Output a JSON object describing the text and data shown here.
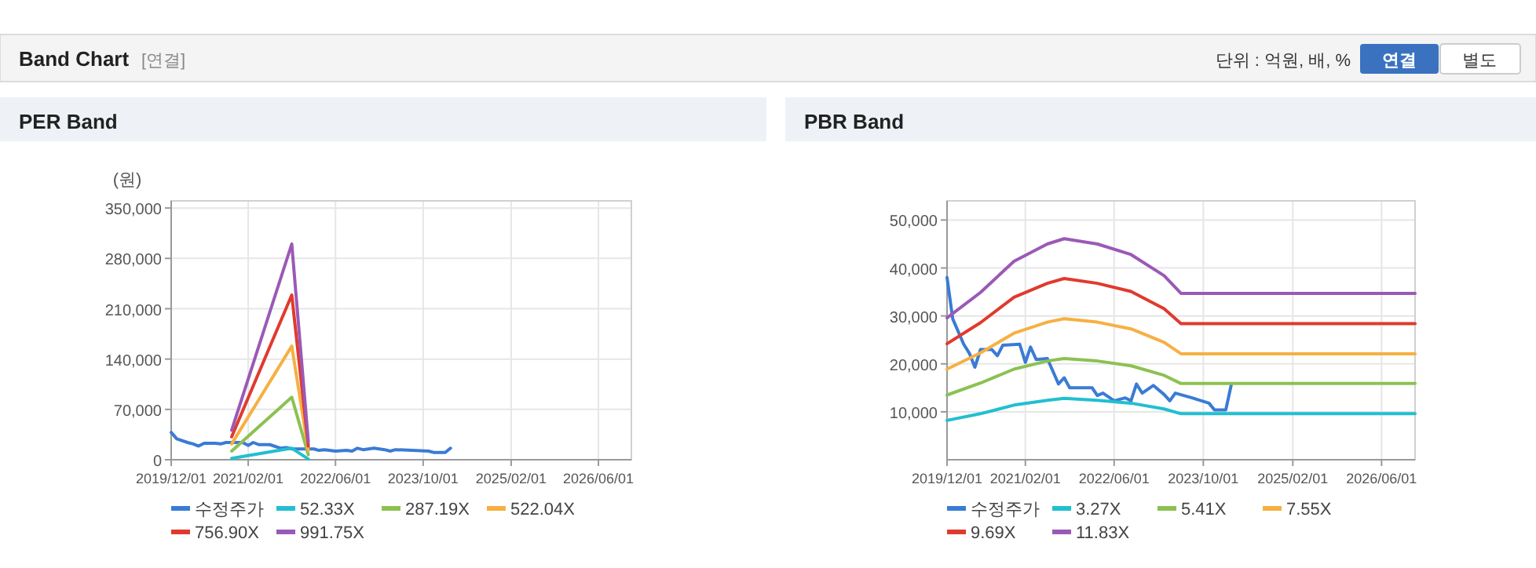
{
  "chart_data": [
    {
      "type": "other",
      "title": "Band Chart",
      "annotations": [
        "[연결]",
        "단위 : 억원, 배, %",
        "연결",
        "별도"
      ]
    },
    {
      "type": "line",
      "title": "PER Band",
      "ylabel": "(원)",
      "legend": "bottom",
      "grid": true,
      "marker": "none",
      "line_style": "solid",
      "xlim": [
        "2019-12-01",
        "2026-12-01"
      ],
      "xticks": [
        {
          "value": "2019-12-01",
          "label": "2019/12/01"
        },
        {
          "value": "2021-02-01",
          "label": "2021/02/01"
        },
        {
          "value": "2022-06-01",
          "label": "2022/06/01"
        },
        {
          "value": "2023-10-01",
          "label": "2023/10/01"
        },
        {
          "value": "2025-02-01",
          "label": "2025/02/01"
        },
        {
          "value": "2026-06-01",
          "label": "2026/06/01"
        }
      ],
      "ylim": [
        0,
        360000
      ],
      "yticks": [
        0,
        {
          "value": 70000,
          "label": "70,000"
        },
        {
          "value": 140000,
          "label": "140,000"
        },
        {
          "value": 210000,
          "label": "210,000"
        },
        {
          "value": 280000,
          "label": "280,000"
        },
        {
          "value": 350000,
          "label": "350,000"
        }
      ],
      "series": [
        {
          "name": "수정주가",
          "color": "#3a7bd5",
          "x": [
            "2019-12",
            "2020-01",
            "2020-03",
            "2020-04",
            "2020-05",
            "2020-06",
            "2020-08",
            "2020-09",
            "2020-10",
            "2021-01",
            "2021-02",
            "2021-03",
            "2021-04",
            "2021-06",
            "2021-08",
            "2021-09",
            "2021-10",
            "2022-02",
            "2022-03",
            "2022-04",
            "2022-06",
            "2022-08",
            "2022-09",
            "2022-10",
            "2022-11",
            "2023-01",
            "2023-03",
            "2023-04",
            "2023-05",
            "2023-08",
            "2023-11",
            "2023-12",
            "2024-02",
            "2024-03"
          ],
          "values": [
            38000,
            29000,
            24000,
            22000,
            19000,
            23000,
            23000,
            22000,
            24000,
            24000,
            20000,
            24000,
            21000,
            21000,
            16000,
            17000,
            15000,
            15000,
            13000,
            14000,
            12000,
            13000,
            12000,
            16000,
            14000,
            16000,
            14000,
            12000,
            14000,
            13000,
            12000,
            10000,
            10000,
            16000
          ]
        },
        {
          "name": "52.33X",
          "color": "#22bfd0",
          "x": [
            "2020-11",
            "2021-10",
            "2022-01"
          ],
          "values": [
            2000,
            16000,
            1000
          ]
        },
        {
          "name": "287.19X",
          "color": "#8cc152",
          "x": [
            "2020-11",
            "2021-10",
            "2022-01"
          ],
          "values": [
            12000,
            87000,
            7000
          ]
        },
        {
          "name": "522.04X",
          "color": "#f6b042",
          "x": [
            "2020-11",
            "2021-10",
            "2022-01"
          ],
          "values": [
            22000,
            158000,
            13000
          ]
        },
        {
          "name": "756.90X",
          "color": "#e03a2e",
          "x": [
            "2020-11",
            "2021-10",
            "2022-01"
          ],
          "values": [
            32000,
            229000,
            19000
          ]
        },
        {
          "name": "991.75X",
          "color": "#9b59b6",
          "x": [
            "2020-11",
            "2021-10",
            "2022-01"
          ],
          "values": [
            41000,
            300000,
            25000
          ]
        }
      ]
    },
    {
      "type": "line",
      "title": "PBR Band",
      "legend": "bottom",
      "grid": true,
      "marker": "none",
      "line_style": "solid",
      "xlim": [
        "2019-12-01",
        "2026-12-01"
      ],
      "xticks": [
        {
          "value": "2019-12-01",
          "label": "2019/12/01"
        },
        {
          "value": "2021-02-01",
          "label": "2021/02/01"
        },
        {
          "value": "2022-06-01",
          "label": "2022/06/01"
        },
        {
          "value": "2023-10-01",
          "label": "2023/10/01"
        },
        {
          "value": "2025-02-01",
          "label": "2025/02/01"
        },
        {
          "value": "2026-06-01",
          "label": "2026/06/01"
        }
      ],
      "ylim": [
        0,
        54000
      ],
      "yticks": [
        {
          "value": 10000,
          "label": "10,000"
        },
        {
          "value": 20000,
          "label": "20,000"
        },
        {
          "value": 30000,
          "label": "30,000"
        },
        {
          "value": 40000,
          "label": "40,000"
        },
        {
          "value": 50000,
          "label": "50,000"
        }
      ],
      "series": [
        {
          "name": "수정주가",
          "color": "#3a7bd5",
          "x": [
            "2019-12",
            "2020-01",
            "2020-03",
            "2020-04",
            "2020-05",
            "2020-06",
            "2020-08",
            "2020-09",
            "2020-10",
            "2021-01",
            "2021-02",
            "2021-03",
            "2021-04",
            "2021-06",
            "2021-08",
            "2021-09",
            "2021-10",
            "2022-02",
            "2022-03",
            "2022-04",
            "2022-06",
            "2022-08",
            "2022-09",
            "2022-10",
            "2022-11",
            "2023-01",
            "2023-03",
            "2023-04",
            "2023-05",
            "2023-08",
            "2023-11",
            "2023-12",
            "2024-02",
            "2024-03"
          ],
          "values": [
            38000,
            29400,
            24100,
            22200,
            19300,
            23000,
            23000,
            21700,
            23900,
            24100,
            20300,
            23500,
            20900,
            21100,
            15800,
            17100,
            15000,
            15000,
            13400,
            13900,
            12300,
            12900,
            12300,
            15800,
            13900,
            15500,
            13600,
            12300,
            13900,
            12900,
            11800,
            10400,
            10400,
            15500
          ]
        },
        {
          "name": "3.27X",
          "color": "#22bfd0",
          "x": [
            "2019-12",
            "2020-06",
            "2020-12",
            "2021-06",
            "2021-09",
            "2022-03",
            "2022-09",
            "2023-03",
            "2023-06",
            "2026-12"
          ],
          "values": [
            8200,
            9600,
            11400,
            12400,
            12800,
            12400,
            11800,
            10600,
            9600,
            9600
          ]
        },
        {
          "name": "5.41X",
          "color": "#8cc152",
          "x": [
            "2019-12",
            "2020-06",
            "2020-12",
            "2021-06",
            "2021-09",
            "2022-03",
            "2022-09",
            "2023-03",
            "2023-06",
            "2026-12"
          ],
          "values": [
            13500,
            16000,
            18900,
            20600,
            21100,
            20600,
            19600,
            17600,
            15900,
            15900
          ]
        },
        {
          "name": "7.55X",
          "color": "#f6b042",
          "x": [
            "2019-12",
            "2020-06",
            "2020-12",
            "2021-06",
            "2021-09",
            "2022-03",
            "2022-09",
            "2023-03",
            "2023-06",
            "2026-12"
          ],
          "values": [
            18900,
            22300,
            26400,
            28700,
            29400,
            28700,
            27300,
            24500,
            22100,
            22100
          ]
        },
        {
          "name": "9.69X",
          "color": "#e03a2e",
          "x": [
            "2019-12",
            "2020-06",
            "2020-12",
            "2021-06",
            "2021-09",
            "2022-03",
            "2022-09",
            "2023-03",
            "2023-06",
            "2026-12"
          ],
          "values": [
            24200,
            28600,
            33900,
            36800,
            37800,
            36800,
            35100,
            31500,
            28400,
            28400
          ]
        },
        {
          "name": "11.83X",
          "color": "#9b59b6",
          "x": [
            "2019-12",
            "2020-06",
            "2020-12",
            "2021-06",
            "2021-09",
            "2022-03",
            "2022-09",
            "2023-03",
            "2023-06",
            "2026-12"
          ],
          "values": [
            29600,
            34900,
            41400,
            45000,
            46100,
            45000,
            42800,
            38400,
            34700,
            34700
          ]
        }
      ]
    }
  ]
}
